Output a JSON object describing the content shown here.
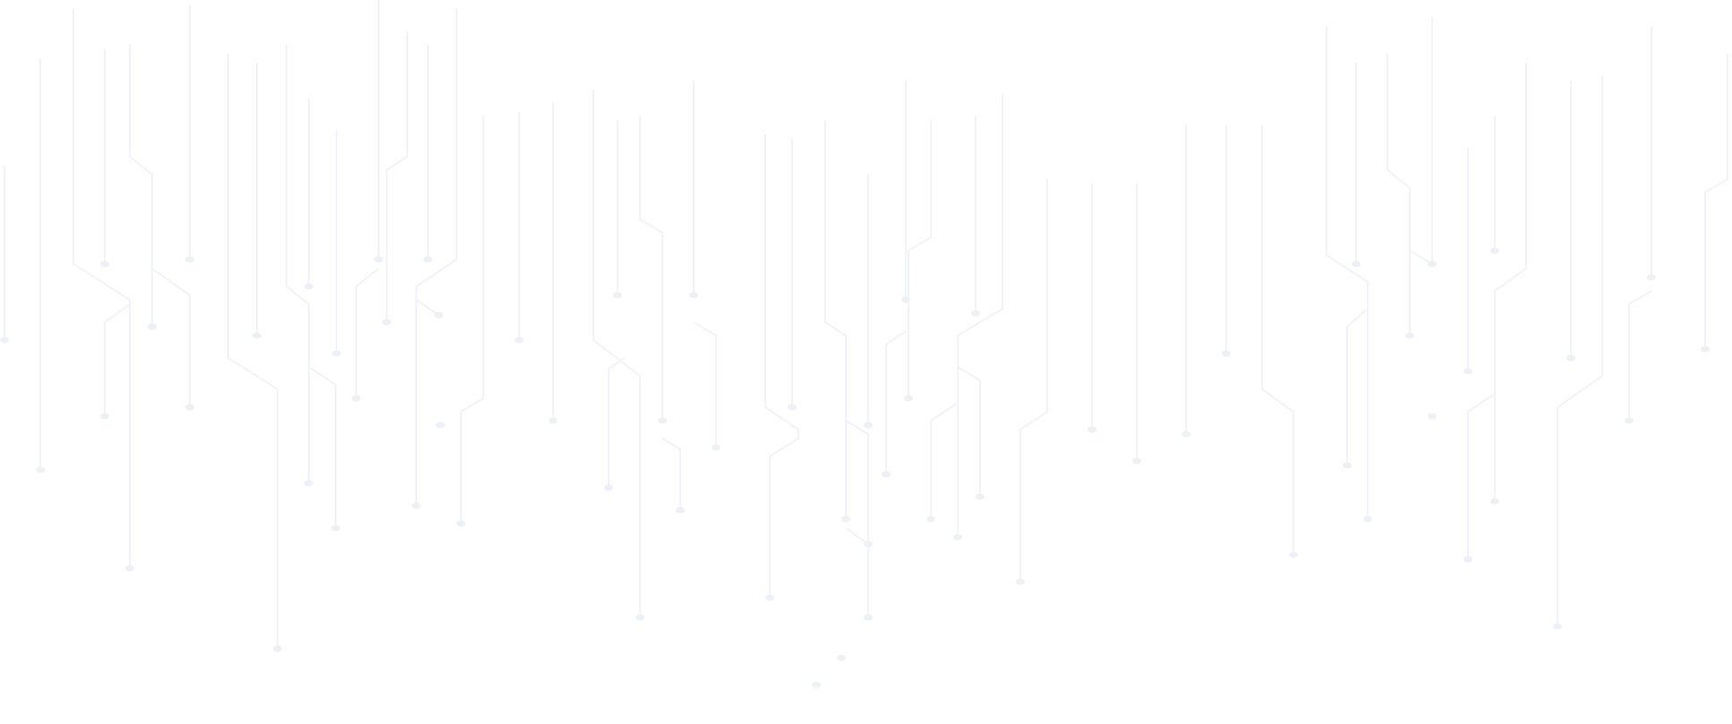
{
  "background": {
    "pattern": "circuit-traces",
    "background_color": "#ffffff",
    "trace_color": "#f2f3f8",
    "node_color": "#eef0f6"
  }
}
